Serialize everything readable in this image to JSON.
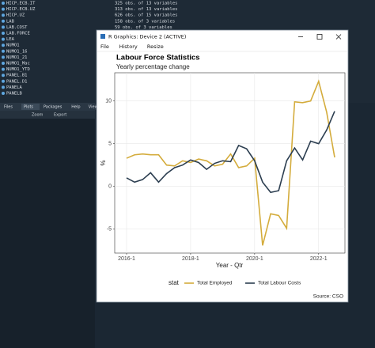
{
  "ui": {
    "environment": {
      "rows": [
        {
          "name": "HICP.ECB.IT",
          "desc": "325 obs. of 13 variables"
        },
        {
          "name": "HICP.ECB.UZ",
          "desc": "313 obs. of 13 variables"
        },
        {
          "name": "HICP.UZ",
          "desc": "626 obs. of 15 variables"
        },
        {
          "name": "LAB",
          "desc": "158 obs. of 3 variables"
        },
        {
          "name": "LAB.COST",
          "desc": "59 obs. of 3 variables"
        },
        {
          "name": "LAB.FORCE"
        },
        {
          "name": "LEA"
        },
        {
          "name": "NUMO1"
        },
        {
          "name": "NUMO1_16"
        },
        {
          "name": "NUMO1_21"
        },
        {
          "name": "NUMO1_Mac"
        },
        {
          "name": "NUMO1_YTD"
        },
        {
          "name": "PANEL.B1"
        },
        {
          "name": "PANEL.D1"
        },
        {
          "name": "PANELA"
        },
        {
          "name": "PANELB"
        }
      ]
    },
    "tabs": [
      "Files",
      "Plots",
      "Packages",
      "Help",
      "Viewer"
    ],
    "toolbar": [
      "Zoom",
      "Export"
    ],
    "window": {
      "title": "R Graphics: Device 2 (ACTIVE)",
      "menu": [
        "File",
        "History",
        "Resize"
      ]
    }
  },
  "chart_data": {
    "type": "line",
    "title": "Labour Force Statistics",
    "subtitle": "Yearly percentage change",
    "x_label": "Year - Qtr",
    "y_label": "%",
    "caption": "Source: CSO",
    "legend_title": "stat",
    "legend_position": "bottom",
    "grid": true,
    "categories": [
      "2016-1",
      null,
      null,
      null,
      null,
      null,
      null,
      null,
      "2018-1",
      null,
      null,
      null,
      null,
      null,
      null,
      null,
      "2020-1",
      null,
      null,
      null,
      null,
      null,
      null,
      null,
      "2022-1",
      null,
      null
    ],
    "series": [
      {
        "name": "Total Employed",
        "color": "#d4ac3c",
        "values": [
          3.3,
          3.7,
          3.8,
          3.7,
          3.7,
          2.5,
          2.4,
          3.0,
          2.8,
          3.2,
          3.0,
          2.4,
          2.6,
          3.8,
          2.2,
          2.4,
          3.3,
          -6.9,
          -3.2,
          -3.4,
          -4.9,
          9.9,
          9.8,
          10.0,
          12.3,
          8.7,
          3.4
        ]
      },
      {
        "name": "Total Labour Costs",
        "color": "#2c3e50",
        "values": [
          1.0,
          0.5,
          0.8,
          1.6,
          0.5,
          1.5,
          2.2,
          2.5,
          3.1,
          2.8,
          2.0,
          2.7,
          3.0,
          2.9,
          4.8,
          4.4,
          3.0,
          0.5,
          -0.7,
          -0.5,
          3.0,
          4.5,
          3.1,
          5.3,
          5.0,
          6.6,
          8.8
        ]
      }
    ],
    "ylim": [
      -7.8,
      13.3
    ],
    "yticks": [
      -5,
      0,
      5,
      10
    ]
  }
}
